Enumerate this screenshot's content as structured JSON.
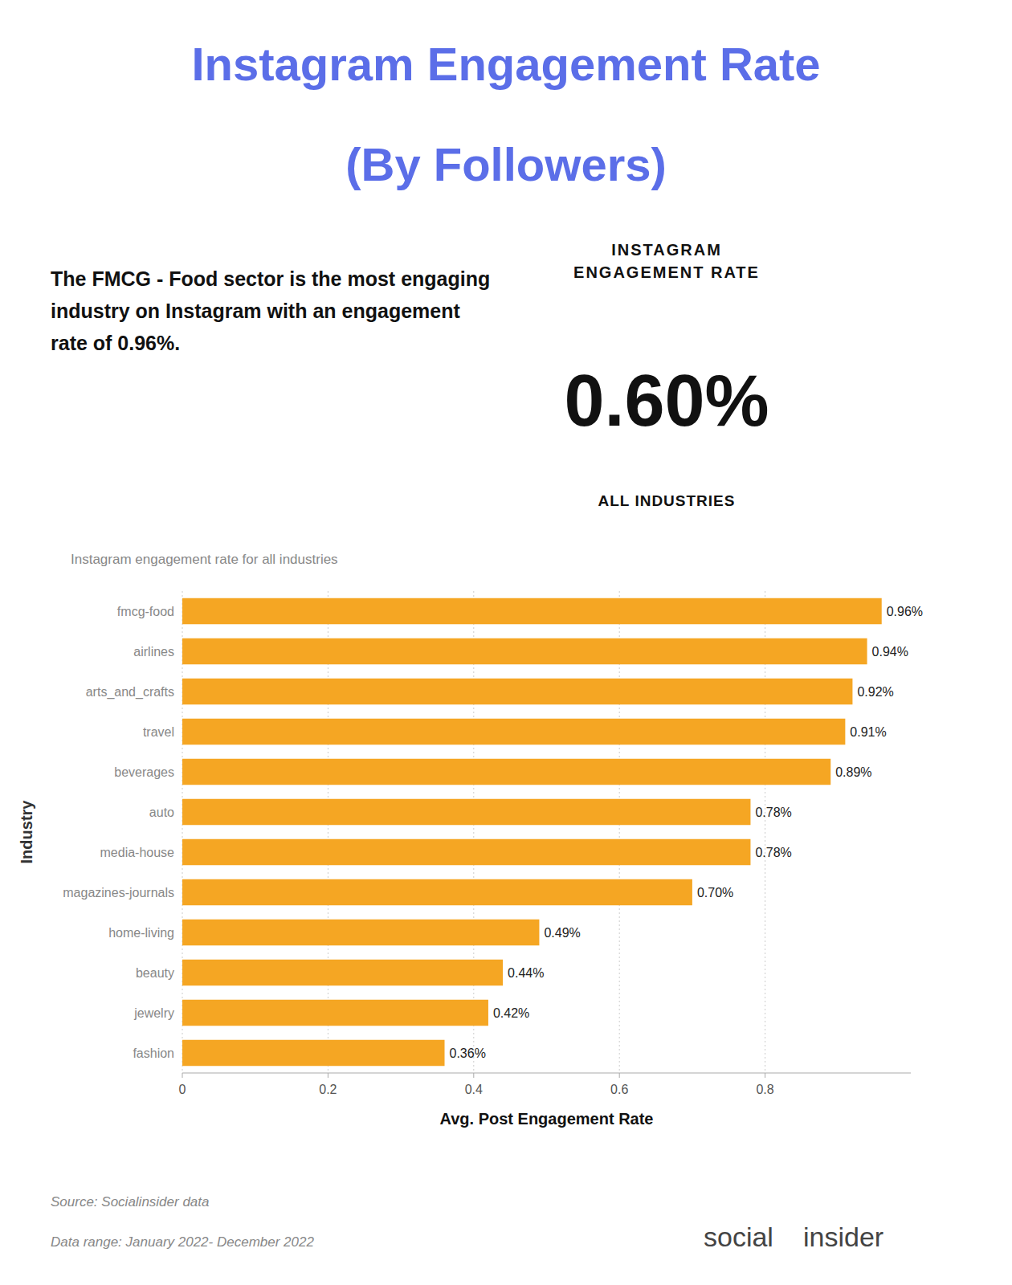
{
  "chart_data": {
    "type": "bar",
    "orientation": "horizontal",
    "title": "Instagram Engagement Rate",
    "subtitle": "(By Followers)",
    "annotations": [
      "The FMCG - Food sector is the most engaging\nindustry on Instagram with an engagement\nrate of 0.96%.",
      "INSTAGRAM\nENGAGEMENT RATE",
      "0.60%",
      "ALL INDUSTRIES",
      "Instagram engagement rate for all industries",
      "Source: Socialinsider data",
      "Data range: January 2022- December 2022",
      "social",
      "insider"
    ],
    "categories": [
      "fmcg-food",
      "airlines",
      "arts_and_crafts",
      "travel",
      "beverages",
      "auto",
      "media-house",
      "magazines-journals",
      "home-living",
      "beauty",
      "jewelry",
      "fashion"
    ],
    "values": [
      0.96,
      0.94,
      0.92,
      0.91,
      0.89,
      0.78,
      0.78,
      0.7,
      0.49,
      0.44,
      0.42,
      0.36
    ],
    "value_labels": [
      "0.96%",
      "0.94%",
      "0.92%",
      "0.91%",
      "0.89%",
      "0.78%",
      "0.78%",
      "0.70%",
      "0.49%",
      "0.44%",
      "0.42%",
      "0.36%"
    ],
    "data_labels": true,
    "color": "#F5A623",
    "xlabel": "Avg. Post Engagement Rate",
    "ylabel": "Industry",
    "xlim": [
      0,
      1.0
    ],
    "xticks": [
      0,
      0.2,
      0.4,
      0.6,
      0.8
    ],
    "grid": true
  }
}
